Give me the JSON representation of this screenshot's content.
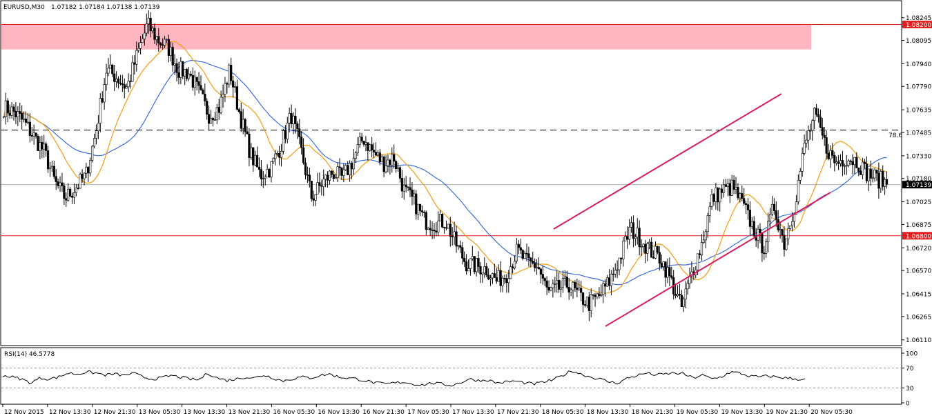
{
  "header": {
    "symbol": "EURUSD,M30",
    "ohlc": "1.07182 1.07184 1.07138 1.07139"
  },
  "rsi_header": "RSI(14) 46.5778",
  "colors": {
    "candle": "#000000",
    "ma_fast": "#f39c12",
    "ma_slow": "#3b6fd8",
    "channel": "#d81b60",
    "resistance_zone": "#ffb6c1",
    "level_line": "#e02020",
    "price_line": "#b0b0b0"
  },
  "annotations": {
    "fib_label": "78.6",
    "level_high_label": "1.08200",
    "level_low_label": "1.06800",
    "current_price_label": "1.07139"
  },
  "chart_data": [
    {
      "type": "candlestick",
      "title": "",
      "y_ticks": [
        "1.08245",
        "1.08095",
        "1.07940",
        "1.07790",
        "1.07635",
        "1.07485",
        "1.07330",
        "1.07180",
        "1.07025",
        "1.06875",
        "1.06720",
        "1.06570",
        "1.06415",
        "1.06265",
        "1.06110"
      ],
      "ylim": [
        1.06095,
        1.08335
      ],
      "x_ticks": [
        "12 Nov 2015",
        "12 Nov 13:30",
        "12 Nov 21:30",
        "13 Nov 05:30",
        "13 Nov 13:30",
        "13 Nov 21:30",
        "16 Nov 05:30",
        "16 Nov 13:30",
        "16 Nov 21:30",
        "17 Nov 05:30",
        "17 Nov 13:30",
        "17 Nov 21:30",
        "18 Nov 05:30",
        "18 Nov 13:30",
        "18 Nov 21:30",
        "19 Nov 05:30",
        "19 Nov 13:30",
        "19 Nov 21:30",
        "20 Nov 05:30"
      ],
      "close_path": [
        1.0765,
        1.0762,
        1.0755,
        1.0745,
        1.0735,
        1.0715,
        1.0705,
        1.0712,
        1.072,
        1.075,
        1.079,
        1.0785,
        1.0778,
        1.08,
        1.082,
        1.081,
        1.0805,
        1.079,
        1.0788,
        1.0775,
        1.076,
        1.0765,
        1.079,
        1.076,
        1.0735,
        1.072,
        1.0725,
        1.074,
        1.076,
        1.0735,
        1.0705,
        1.0715,
        1.0722,
        1.0718,
        1.073,
        1.0745,
        1.0735,
        1.0728,
        1.0732,
        1.071,
        1.0702,
        1.069,
        1.0688,
        1.069,
        1.0675,
        1.0662,
        1.066,
        1.0658,
        1.065,
        1.0655,
        1.067,
        1.0662,
        1.066,
        1.0642,
        1.0645,
        1.0648,
        1.064,
        1.0635,
        1.064,
        1.065,
        1.0665,
        1.0685,
        1.0678,
        1.067,
        1.0665,
        1.065,
        1.0632,
        1.0655,
        1.0675,
        1.0705,
        1.071,
        1.0712,
        1.07,
        1.0685,
        1.0672,
        1.07,
        1.0675,
        1.07,
        1.074,
        1.076,
        1.074,
        1.0728,
        1.0732,
        1.073,
        1.0722,
        1.0718,
        1.0715
      ],
      "resistance_zone": [
        1.08035,
        1.082
      ],
      "horizontal_levels": [
        1.082,
        1.068
      ],
      "fib_level": 1.075,
      "current_price": 1.07139
    },
    {
      "type": "line",
      "title": "RSI(14) 46.5778",
      "y_ticks": [
        "100",
        "70",
        "30",
        "0"
      ],
      "ylim": [
        0,
        100
      ],
      "levels": [
        70,
        30
      ],
      "series": [
        {
          "values": [
            55,
            52,
            48,
            40,
            50,
            48,
            52,
            60,
            58,
            62,
            60,
            56,
            58,
            55,
            60,
            52,
            48,
            50,
            55,
            52,
            48,
            46,
            60,
            50,
            45,
            48,
            52,
            50,
            56,
            50,
            44,
            48,
            52,
            50,
            55,
            58,
            52,
            50,
            48,
            44,
            40,
            38,
            40,
            42,
            38,
            36,
            40,
            38,
            35,
            40,
            48,
            45,
            46,
            40,
            42,
            44,
            40,
            38,
            42,
            46,
            55,
            65,
            58,
            52,
            48,
            42,
            40,
            50,
            55,
            60,
            56,
            58,
            60,
            58,
            50,
            56,
            48,
            52,
            62,
            60,
            54,
            52,
            54,
            52,
            50,
            48,
            47
          ]
        }
      ]
    }
  ]
}
